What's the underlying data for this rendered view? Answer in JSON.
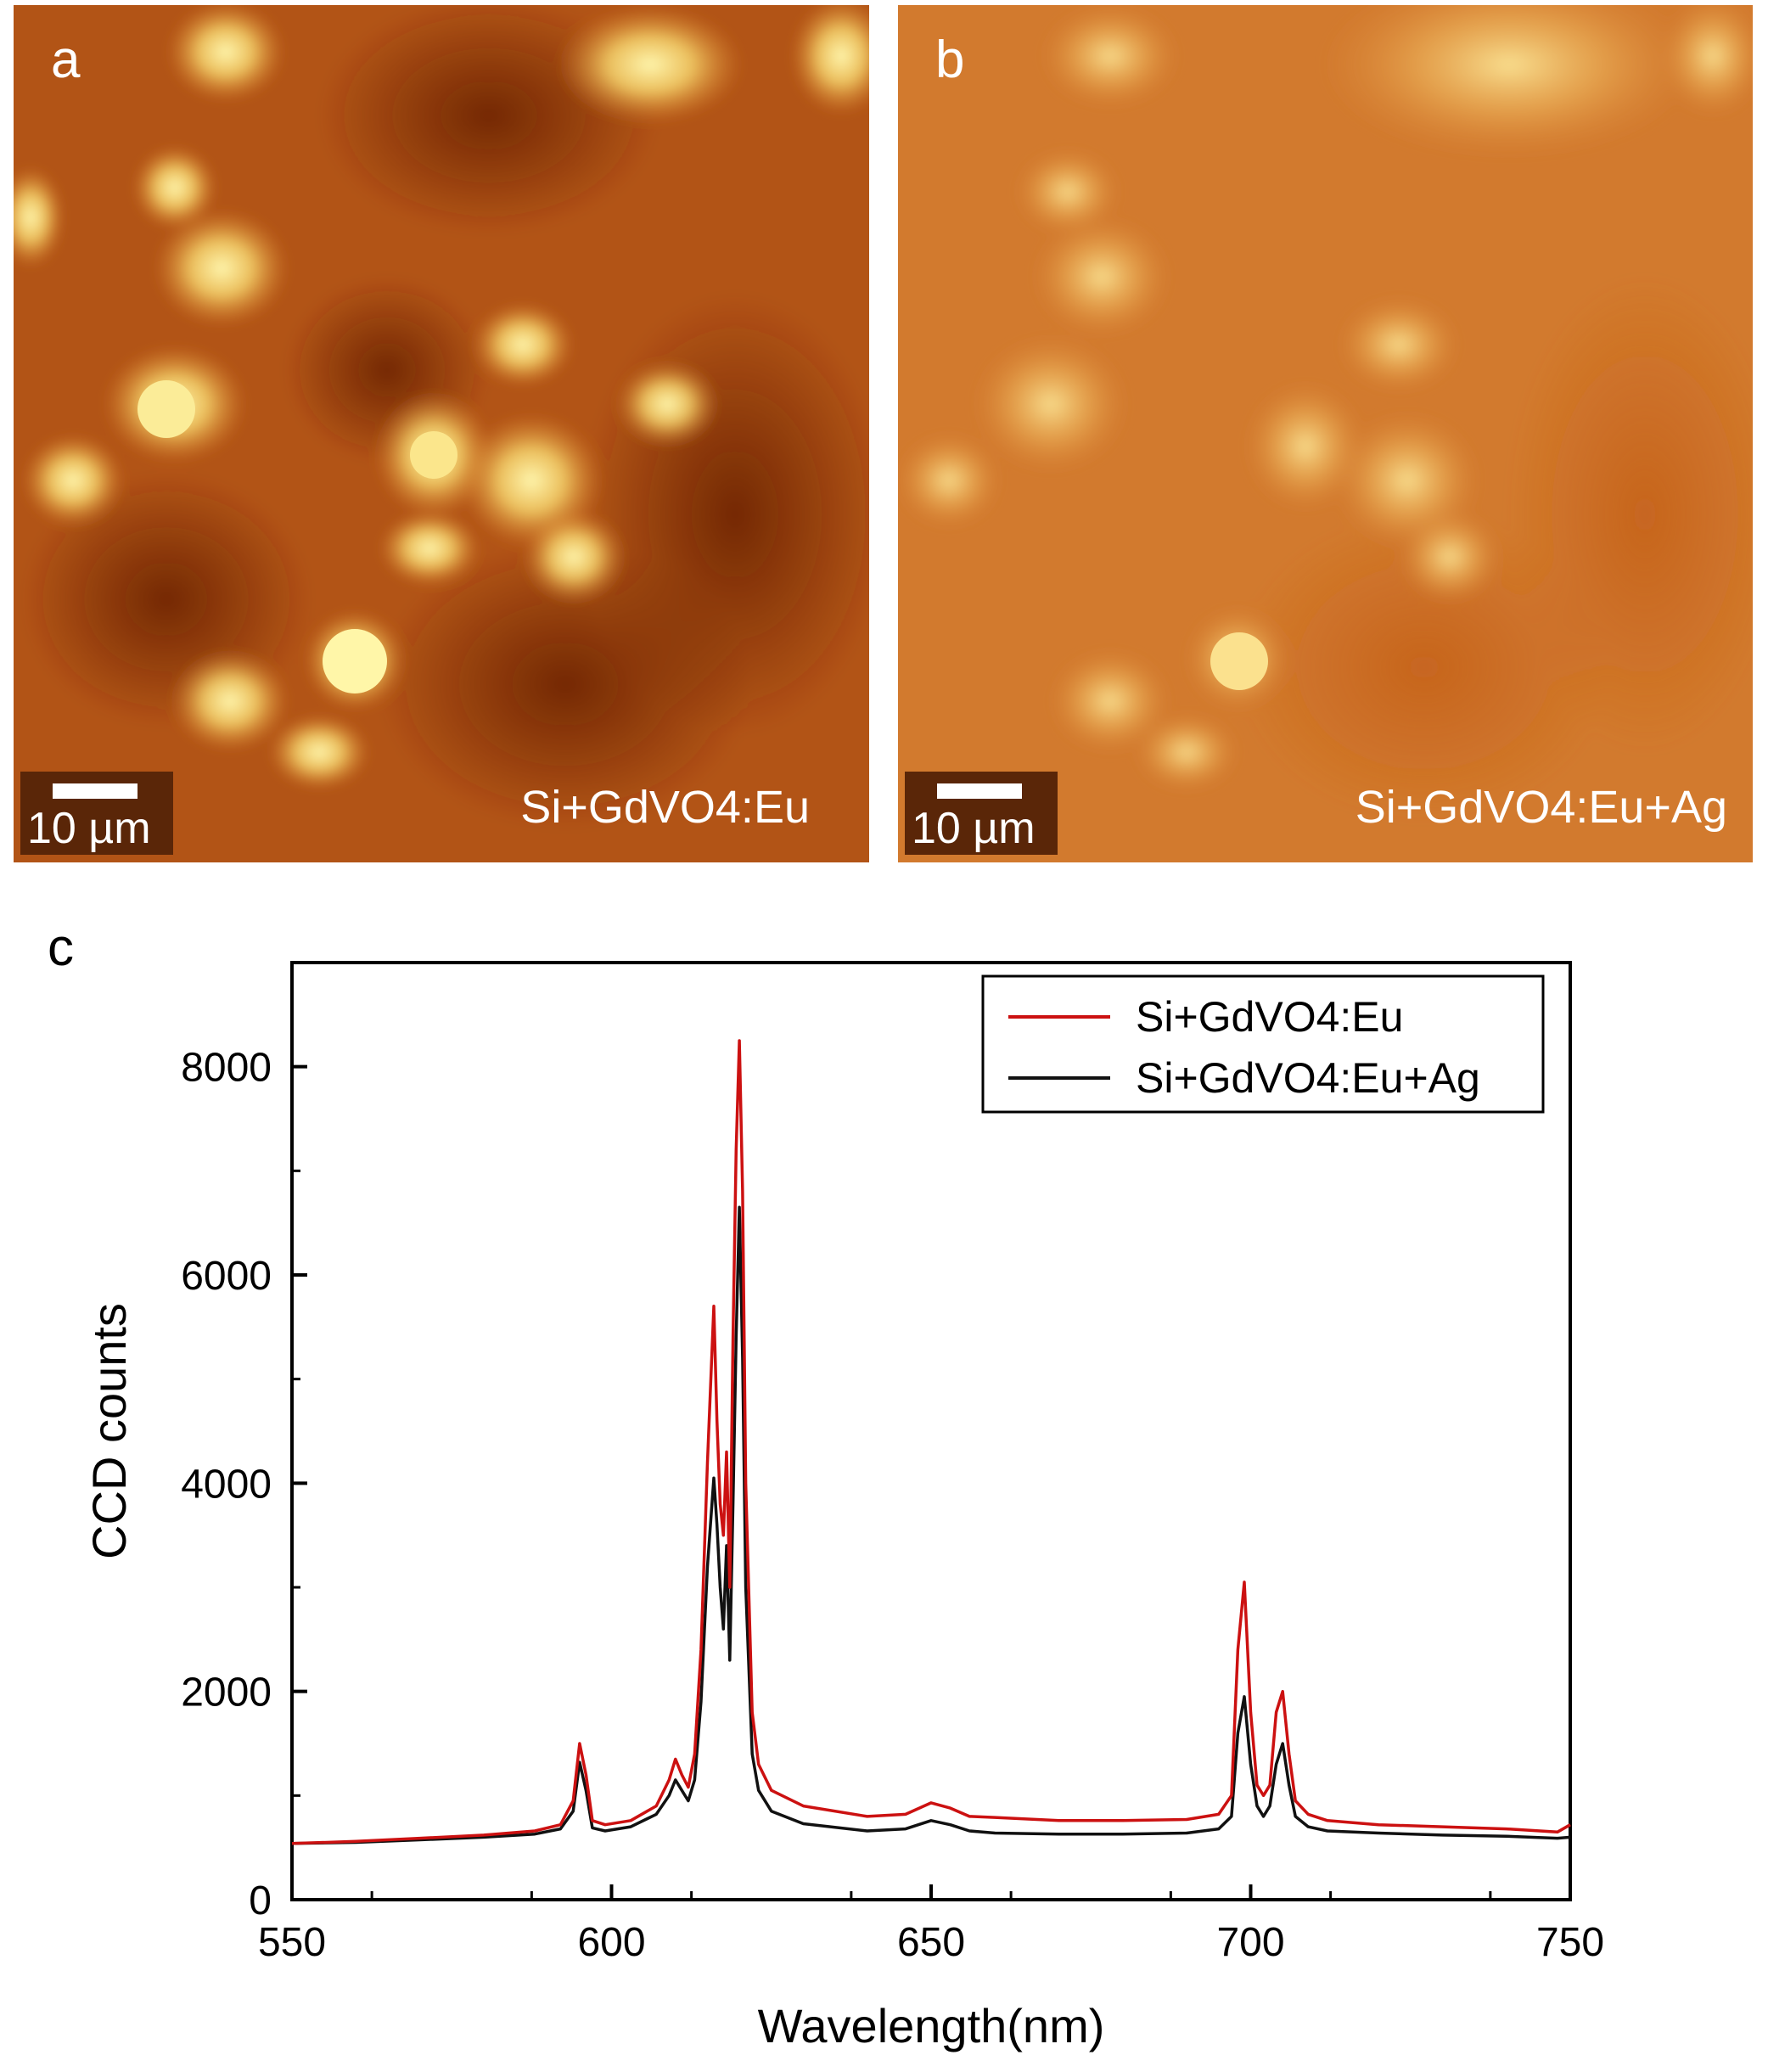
{
  "panels": [
    {
      "letter": "a",
      "scale_label": "10 µm",
      "sample_label": "Si+GdVO4:Eu",
      "colors": {
        "background": "#b95a1a",
        "bright": "#fff3a0",
        "dark": "#7a2a08"
      }
    },
    {
      "letter": "b",
      "scale_label": "10 µm",
      "sample_label": "Si+GdVO4:Eu+Ag",
      "colors": {
        "background": "#d27a2c",
        "bright": "#fbe79a",
        "dark": "#c0601c"
      }
    }
  ],
  "chart_data": {
    "panel_letter": "c",
    "type": "line",
    "xlabel": "Wavelength(nm)",
    "ylabel": "CCD counts",
    "xlim": [
      550,
      750
    ],
    "ylim": [
      0,
      9000
    ],
    "xticks": [
      550,
      600,
      650,
      700,
      750
    ],
    "yticks": [
      0,
      2000,
      4000,
      6000,
      8000
    ],
    "legend_position": "top-right",
    "series": [
      {
        "name": "Si+GdVO4:Eu",
        "color": "#cc1111",
        "x": [
          550,
          560,
          570,
          580,
          588,
          592,
          594,
          595,
          596,
          597,
          599,
          603,
          607,
          609,
          610,
          611,
          612,
          613,
          614,
          615,
          616,
          616.5,
          617,
          617.5,
          618,
          618.5,
          619,
          619.5,
          620,
          620.5,
          621,
          622,
          623,
          625,
          630,
          640,
          646,
          650,
          653,
          656,
          660,
          670,
          680,
          690,
          695,
          697,
          698,
          699,
          700,
          701,
          702,
          703,
          704,
          705,
          706,
          707,
          709,
          712,
          720,
          730,
          740,
          748,
          750
        ],
        "y": [
          540,
          560,
          590,
          620,
          660,
          720,
          950,
          1500,
          1200,
          760,
          720,
          760,
          900,
          1150,
          1350,
          1200,
          1080,
          1400,
          2400,
          4200,
          5700,
          4600,
          3800,
          3500,
          4300,
          3000,
          5400,
          7200,
          8250,
          6800,
          4000,
          1800,
          1300,
          1050,
          900,
          800,
          820,
          930,
          880,
          800,
          790,
          760,
          760,
          770,
          820,
          1000,
          2400,
          3050,
          1800,
          1100,
          1000,
          1100,
          1800,
          2000,
          1400,
          950,
          820,
          760,
          720,
          700,
          680,
          650,
          720
        ]
      },
      {
        "name": "Si+GdVO4:Eu+Ag",
        "color": "#111111",
        "x": [
          550,
          560,
          570,
          580,
          588,
          592,
          594,
          595,
          596,
          597,
          599,
          603,
          607,
          609,
          610,
          611,
          612,
          613,
          614,
          615,
          616,
          616.5,
          617,
          617.5,
          618,
          618.5,
          619,
          619.5,
          620,
          620.5,
          621,
          622,
          623,
          625,
          630,
          640,
          646,
          650,
          653,
          656,
          660,
          670,
          680,
          690,
          695,
          697,
          698,
          699,
          700,
          701,
          702,
          703,
          704,
          705,
          706,
          707,
          709,
          712,
          720,
          730,
          740,
          748,
          750
        ],
        "y": [
          540,
          550,
          575,
          600,
          630,
          680,
          850,
          1320,
          1050,
          690,
          660,
          700,
          820,
          1000,
          1150,
          1050,
          950,
          1150,
          1900,
          3200,
          4050,
          3600,
          3000,
          2600,
          3400,
          2300,
          3800,
          5400,
          6650,
          5200,
          3000,
          1400,
          1050,
          850,
          730,
          660,
          680,
          760,
          720,
          660,
          640,
          630,
          630,
          640,
          680,
          800,
          1600,
          1950,
          1300,
          900,
          800,
          900,
          1300,
          1500,
          1100,
          800,
          700,
          660,
          640,
          620,
          610,
          590,
          600
        ]
      }
    ]
  }
}
